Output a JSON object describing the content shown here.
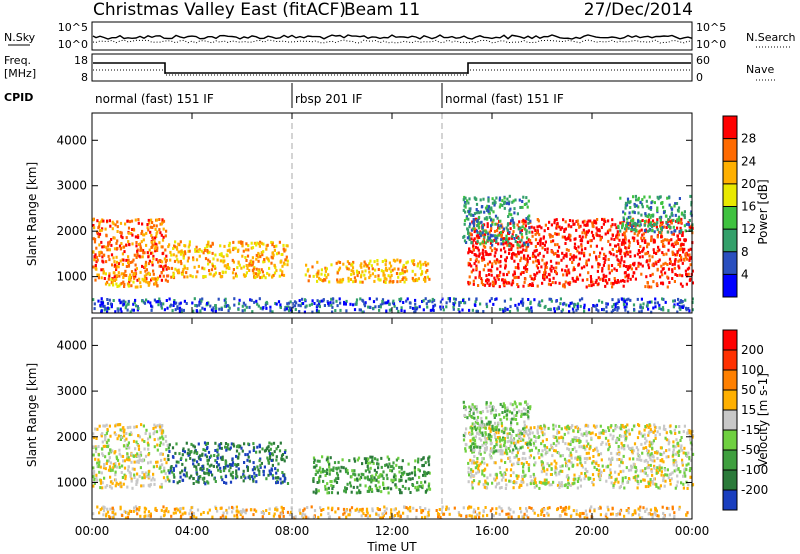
{
  "header": {
    "title": "Christmas Valley East (fitACF)",
    "beam": "Beam 11",
    "date": "27/Dec/2014"
  },
  "strip_labels": {
    "nsky": "N.Sky",
    "nsearch": "N.Search",
    "freq_line1": "Freq.",
    "freq_line2": "[MHz]",
    "nave": "Nave",
    "cpid": "CPID",
    "noise_ticks_left": [
      "10^5",
      "10^0"
    ],
    "noise_ticks_right": [
      "10^5",
      "10^0"
    ],
    "freq_ticks": [
      "18",
      "8"
    ],
    "nave_ticks": [
      "60",
      "0"
    ]
  },
  "cpid_segments": [
    {
      "label": "normal (fast) 151 IF",
      "start_hr": 0
    },
    {
      "label": "rbsp 201 IF",
      "start_hr": 8
    },
    {
      "label": "normal (fast) 151 IF",
      "start_hr": 14
    }
  ],
  "colors": {
    "power": [
      "#0000ff",
      "#2a4fbf",
      "#33a06a",
      "#3fc23f",
      "#e8e800",
      "#ffb000",
      "#ff6a00",
      "#ff0000"
    ],
    "velocity": [
      "#1a3fbf",
      "#2b7a3a",
      "#3f9f3f",
      "#6fd040",
      "#c8c8c8",
      "#ffb000",
      "#ff8000",
      "#ff3000",
      "#ff0000"
    ]
  },
  "chart_data": [
    {
      "type": "heatmap",
      "name": "Power",
      "ylabel": "Slant Range [km]",
      "xlim": [
        0,
        24
      ],
      "ylim": [
        200,
        4600
      ],
      "yticks": [
        "1000",
        "2000",
        "3000",
        "4000"
      ],
      "colorbar": {
        "label": "Power [dB]",
        "ticks": [
          "4",
          "8",
          "12",
          "16",
          "20",
          "24",
          "28"
        ]
      },
      "features": [
        {
          "x": [
            0.0,
            3.0
          ],
          "y": [
            900,
            2300
          ],
          "level": 6
        },
        {
          "x": [
            0.5,
            3.0
          ],
          "y": [
            800,
            1100
          ],
          "level": 5
        },
        {
          "x": [
            3.0,
            7.8
          ],
          "y": [
            1000,
            1800
          ],
          "level": 5
        },
        {
          "x": [
            8.5,
            13.5
          ],
          "y": [
            900,
            1400
          ],
          "level": 5
        },
        {
          "x": [
            15.0,
            24.0
          ],
          "y": [
            800,
            2300
          ],
          "level": 7
        },
        {
          "x": [
            14.8,
            17.5
          ],
          "y": [
            1700,
            2800
          ],
          "level": 2
        },
        {
          "x": [
            21.0,
            24.0
          ],
          "y": [
            2000,
            2800
          ],
          "level": 2
        },
        {
          "x": [
            0.0,
            24.0
          ],
          "y": [
            250,
            550
          ],
          "level": 1
        }
      ]
    },
    {
      "type": "heatmap",
      "name": "Velocity",
      "ylabel": "Slant Range [km]",
      "xlabel": "Time UT",
      "xlim": [
        0,
        24
      ],
      "ylim": [
        200,
        4600
      ],
      "xticks": [
        "00:00",
        "04:00",
        "08:00",
        "12:00",
        "16:00",
        "20:00",
        "00:00"
      ],
      "yticks": [
        "1000",
        "2000",
        "3000",
        "4000"
      ],
      "colorbar": {
        "label": "Velocity [m s-1]",
        "ticks": [
          "200",
          "100",
          "50",
          "15",
          "-15",
          "-50",
          "-100",
          "-200"
        ]
      },
      "features": [
        {
          "x": [
            0.0,
            3.0
          ],
          "y": [
            900,
            2300
          ],
          "level": 4
        },
        {
          "x": [
            3.0,
            7.8
          ],
          "y": [
            1000,
            1900
          ],
          "level": 1
        },
        {
          "x": [
            8.8,
            13.5
          ],
          "y": [
            800,
            1600
          ],
          "level": 2
        },
        {
          "x": [
            15.0,
            24.0
          ],
          "y": [
            900,
            2300
          ],
          "level": 4
        },
        {
          "x": [
            14.8,
            17.5
          ],
          "y": [
            1700,
            2800
          ],
          "level": 3
        },
        {
          "x": [
            0.0,
            24.0
          ],
          "y": [
            250,
            500
          ],
          "level": 5
        }
      ]
    }
  ]
}
